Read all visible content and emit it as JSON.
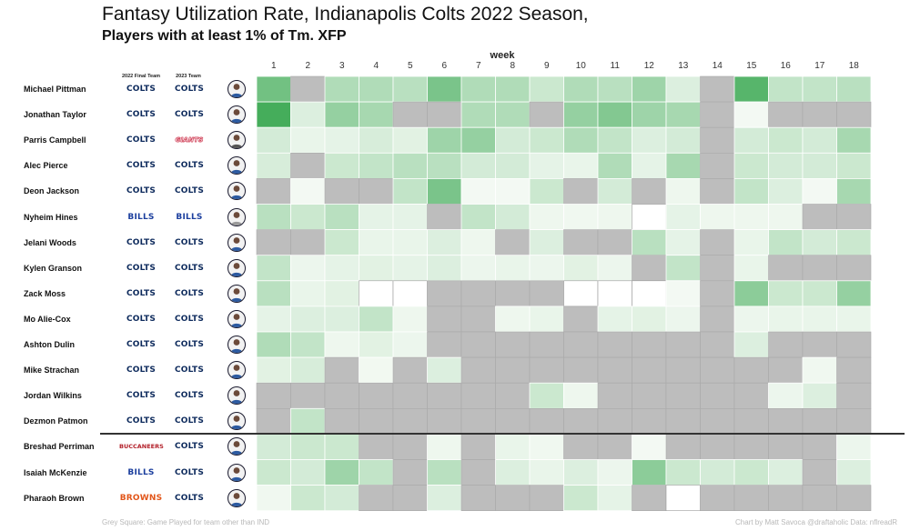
{
  "title": "Fantasy Utilization Rate, Indianapolis Colts 2022 Season,",
  "subtitle": "Players with at least 1% of Tm. XFP",
  "week_axis_label": "week",
  "column_headers": {
    "final_team": "2022 Final Team",
    "team_2023": "2023 Team"
  },
  "footer": {
    "left": "Grey Square: Game Played for team other than IND",
    "right": "Chart by Matt Savoca   @draftaholic   Data: nflreadR"
  },
  "team_colors": {
    "COLTS": "#0d2a5c",
    "BILLS": "#1c3f9e",
    "GIANTS": "#c9243f",
    "BUCCANEERS": "#b3202a",
    "BROWNS": "#e2561a"
  },
  "colors": {
    "grey": "#bdbdbd",
    "missing": "#ffffff",
    "low": "#f7fbf6",
    "high": "#45ad5b",
    "border": "#ffffff"
  },
  "chart_data": {
    "type": "heatmap",
    "x": [
      1,
      2,
      3,
      4,
      5,
      6,
      7,
      8,
      9,
      10,
      11,
      12,
      13,
      14,
      15,
      16,
      17,
      18
    ],
    "xlabel": "week",
    "value_range": [
      0,
      1
    ],
    "legend_note": "Grey Square: Game Played for team other than IND",
    "rows": [
      {
        "player": "Michael Pittman",
        "final_team": "COLTS",
        "team_2023": "COLTS",
        "values": [
          0.75,
          "G",
          0.4,
          0.4,
          0.35,
          0.7,
          0.4,
          0.4,
          0.25,
          0.4,
          0.35,
          0.5,
          0.15,
          "G",
          0.9,
          0.3,
          0.3,
          0.35
        ]
      },
      {
        "player": "Jonathan Taylor",
        "final_team": "COLTS",
        "team_2023": "COLTS",
        "values": [
          1.0,
          0.15,
          0.55,
          0.45,
          "G",
          "G",
          0.4,
          0.4,
          "G",
          0.55,
          0.65,
          0.5,
          0.45,
          "G",
          0.02,
          "G",
          "G",
          "G"
        ]
      },
      {
        "player": "Parris Campbell",
        "final_team": "COLTS",
        "team_2023": "GIANTS",
        "values": [
          0.2,
          0.08,
          0.1,
          0.18,
          0.12,
          0.5,
          0.55,
          0.2,
          0.25,
          0.4,
          0.3,
          0.15,
          0.2,
          "G",
          0.2,
          0.25,
          0.2,
          0.45
        ]
      },
      {
        "player": "Alec Pierce",
        "final_team": "COLTS",
        "team_2023": "COLTS",
        "values": [
          0.18,
          "G",
          0.25,
          0.3,
          0.35,
          0.35,
          0.2,
          0.2,
          0.1,
          0.08,
          0.4,
          0.1,
          0.45,
          "G",
          0.25,
          0.2,
          0.2,
          0.25
        ]
      },
      {
        "player": "Deon Jackson",
        "final_team": "COLTS",
        "team_2023": "COLTS",
        "values": [
          "G",
          0.02,
          "G",
          "G",
          0.3,
          0.7,
          0.02,
          0.02,
          0.25,
          "G",
          0.2,
          "G",
          0.05,
          "G",
          0.3,
          0.15,
          0.02,
          0.45
        ]
      },
      {
        "player": "Nyheim Hines",
        "final_team": "BILLS",
        "team_2023": "BILLS",
        "values": [
          0.35,
          0.25,
          0.35,
          0.1,
          0.1,
          "G",
          0.3,
          0.2,
          0.05,
          0.04,
          0.05,
          0.0,
          0.1,
          0.05,
          0.05,
          0.05,
          "G",
          "G"
        ]
      },
      {
        "player": "Jelani Woods",
        "final_team": "COLTS",
        "team_2023": "COLTS",
        "values": [
          "G",
          "G",
          0.25,
          0.08,
          0.08,
          0.15,
          0.05,
          "G",
          0.15,
          "G",
          "G",
          0.35,
          0.1,
          "G",
          0.08,
          0.3,
          0.2,
          0.25
        ]
      },
      {
        "player": "Kylen Granson",
        "final_team": "COLTS",
        "team_2023": "COLTS",
        "values": [
          0.3,
          0.06,
          0.1,
          0.12,
          0.1,
          0.15,
          0.06,
          0.08,
          0.06,
          0.12,
          0.06,
          "G",
          0.3,
          "G",
          0.08,
          "G",
          "G",
          "G"
        ]
      },
      {
        "player": "Zack Moss",
        "final_team": "COLTS",
        "team_2023": "COLTS",
        "values": [
          0.35,
          0.08,
          0.12,
          0.0,
          0.0,
          "G",
          "G",
          "G",
          "G",
          0.0,
          0.0,
          0.0,
          0.02,
          "G",
          0.6,
          0.25,
          0.25,
          0.55
        ]
      },
      {
        "player": "Mo Alie-Cox",
        "final_team": "COLTS",
        "team_2023": "COLTS",
        "values": [
          0.1,
          0.15,
          0.15,
          0.3,
          0.05,
          "G",
          "G",
          0.05,
          0.08,
          "G",
          0.1,
          0.12,
          0.06,
          "G",
          0.06,
          0.08,
          0.08,
          0.08
        ]
      },
      {
        "player": "Ashton Dulin",
        "final_team": "COLTS",
        "team_2023": "COLTS",
        "values": [
          0.4,
          0.3,
          0.05,
          0.12,
          0.06,
          "G",
          "G",
          "G",
          "G",
          "G",
          "G",
          "G",
          "G",
          "G",
          0.15,
          "G",
          "G",
          "G"
        ]
      },
      {
        "player": "Mike Strachan",
        "final_team": "COLTS",
        "team_2023": "COLTS",
        "values": [
          0.12,
          0.18,
          "G",
          0.03,
          "G",
          0.15,
          "G",
          "G",
          "G",
          "G",
          "G",
          "G",
          "G",
          "G",
          "G",
          "G",
          0.04,
          "G"
        ]
      },
      {
        "player": "Jordan Wilkins",
        "final_team": "COLTS",
        "team_2023": "COLTS",
        "values": [
          "G",
          "G",
          "G",
          "G",
          "G",
          "G",
          "G",
          "G",
          0.25,
          0.05,
          "G",
          "G",
          "G",
          "G",
          "G",
          0.06,
          0.15,
          "G"
        ]
      },
      {
        "player": "Dezmon Patmon",
        "final_team": "COLTS",
        "team_2023": "COLTS",
        "values": [
          "G",
          0.3,
          "G",
          "G",
          "G",
          "G",
          "G",
          "G",
          "G",
          "G",
          "G",
          "G",
          "G",
          "G",
          "G",
          "G",
          "G",
          "G"
        ]
      },
      {
        "player": "Breshad Perriman",
        "final_team": "BUCCANEERS",
        "team_2023": "COLTS",
        "values": [
          0.2,
          0.25,
          0.25,
          "G",
          "G",
          0.05,
          "G",
          0.08,
          0.04,
          "G",
          "G",
          0.02,
          "G",
          "G",
          "G",
          "G",
          "G",
          0.06
        ]
      },
      {
        "player": "Isaiah McKenzie",
        "final_team": "BILLS",
        "team_2023": "COLTS",
        "values": [
          0.25,
          0.2,
          0.5,
          0.3,
          "G",
          0.35,
          "G",
          0.15,
          0.08,
          0.15,
          0.06,
          0.6,
          0.25,
          0.2,
          0.25,
          0.15,
          "G",
          0.15
        ]
      },
      {
        "player": "Pharaoh Brown",
        "final_team": "BROWNS",
        "team_2023": "COLTS",
        "values": [
          0.04,
          0.25,
          0.2,
          "G",
          "G",
          0.15,
          "G",
          "G",
          "G",
          0.25,
          0.1,
          "G",
          0.0,
          "G",
          "G",
          "G",
          "G",
          "G"
        ]
      }
    ]
  }
}
